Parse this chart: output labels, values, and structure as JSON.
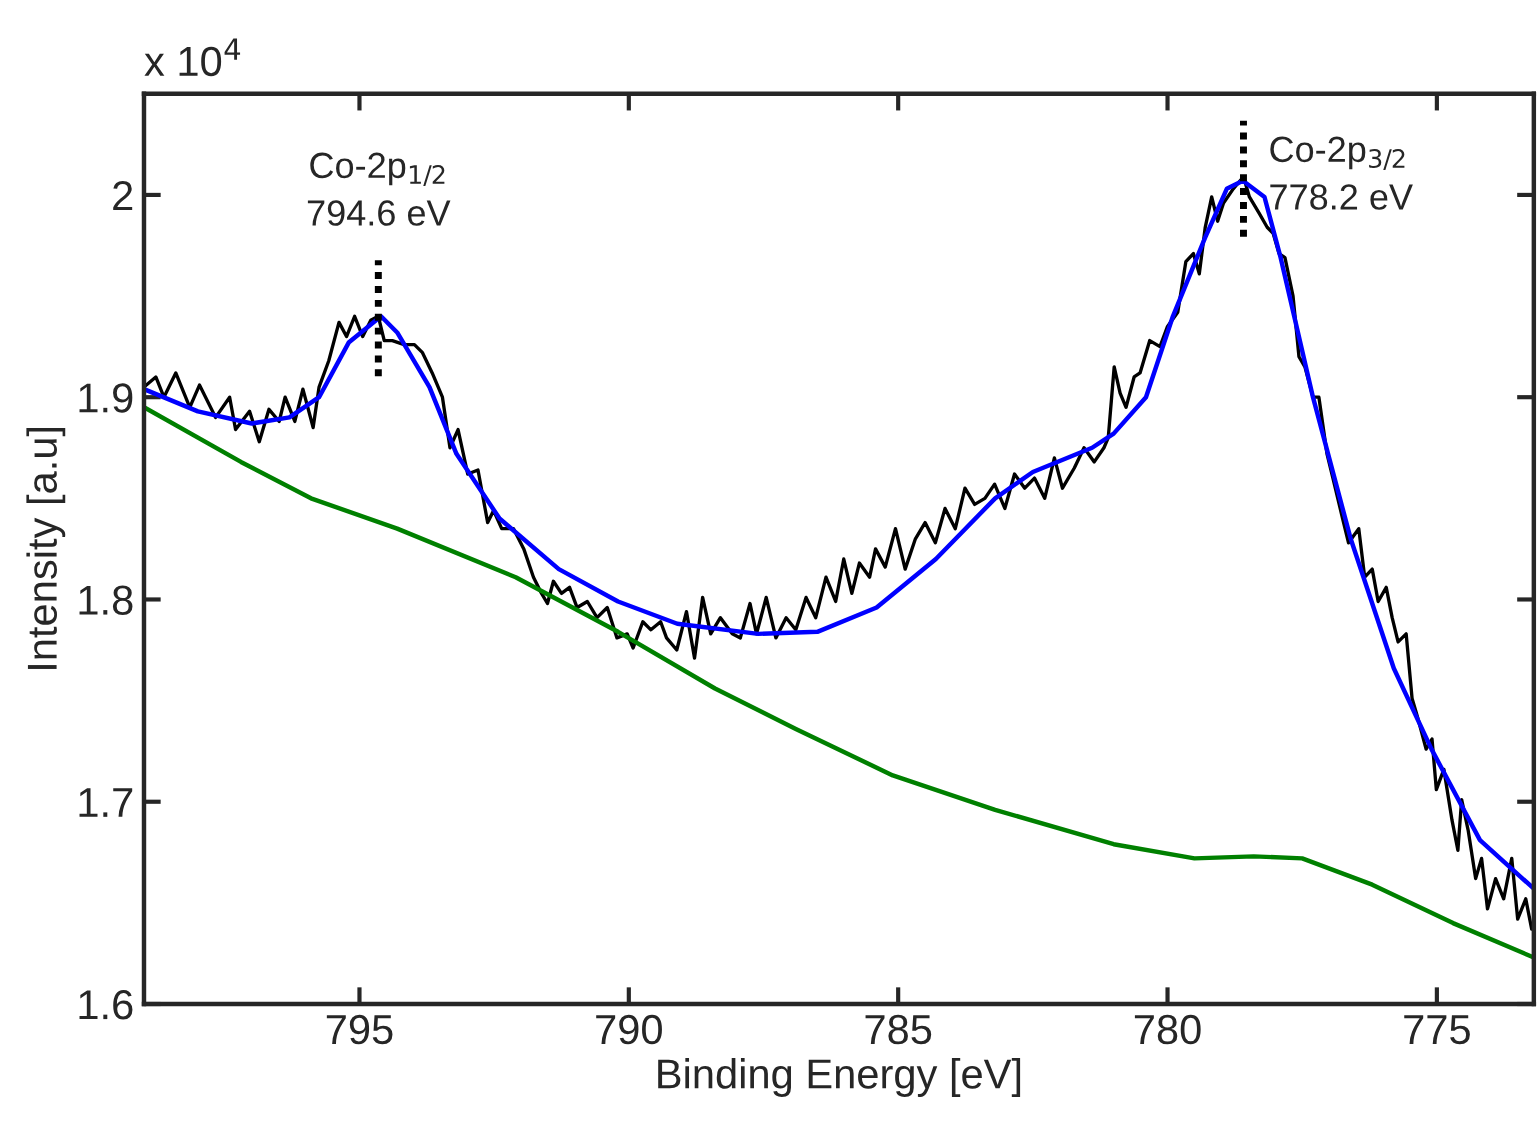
{
  "chart_data": {
    "type": "line",
    "xlabel": "Binding Energy [eV]",
    "ylabel": "Intensity [a.u]",
    "annotations": [
      "x 10$^{4}$",
      {
        "text": "Co-2p$_{1/2}$\n794.6 eV",
        "x": 794.65,
        "y": 1.94
      },
      {
        "text": "Co-2p$_{3/2}$\n778.2 eV",
        "x": 778.59,
        "y": 2.009
      }
    ],
    "xlim": [
      799,
      773.2
    ],
    "xticks": [
      795,
      790,
      785,
      780,
      775
    ],
    "ylim": [
      1.6,
      2.05
    ],
    "yticks": [
      1.6,
      1.7,
      1.8,
      1.9,
      2
    ],
    "grid": false,
    "legend": false,
    "marker": "none",
    "line_style": "solid",
    "series": [
      {
        "color": "#000000",
        "x": [
          799.0,
          798.78,
          798.63,
          798.41,
          798.15,
          797.97,
          797.67,
          797.41,
          797.3,
          797.04,
          796.86,
          796.68,
          796.49,
          796.38,
          796.2,
          796.05,
          795.86,
          795.75,
          795.57,
          795.38,
          795.24,
          795.09,
          794.94,
          794.79,
          794.65,
          794.54,
          794.39,
          794.17,
          793.98,
          793.83,
          793.65,
          793.46,
          793.32,
          793.17,
          792.99,
          792.8,
          792.62,
          792.51,
          792.36,
          792.14,
          791.95,
          791.77,
          791.62,
          791.51,
          791.4,
          791.25,
          791.1,
          790.96,
          790.77,
          790.59,
          790.4,
          790.22,
          790.03,
          789.92,
          789.74,
          789.59,
          789.41,
          789.3,
          789.11,
          788.93,
          788.78,
          788.63,
          788.48,
          788.3,
          788.08,
          787.93,
          787.75,
          787.63,
          787.45,
          787.27,
          787.08,
          786.9,
          786.71,
          786.53,
          786.34,
          786.16,
          786.01,
          785.86,
          785.72,
          785.53,
          785.42,
          785.24,
          785.05,
          784.87,
          784.68,
          784.5,
          784.31,
          784.13,
          783.94,
          783.76,
          783.58,
          783.39,
          783.21,
          783.02,
          782.84,
          782.65,
          782.47,
          782.28,
          782.1,
          781.95,
          781.73,
          781.55,
          781.36,
          781.18,
          781.1,
          780.99,
          780.88,
          780.77,
          780.62,
          780.51,
          780.33,
          780.14,
          780.0,
          779.81,
          779.66,
          779.52,
          779.41,
          779.3,
          779.18,
          779.07,
          778.96,
          778.78,
          778.59,
          778.48,
          778.3,
          778.15,
          778.04,
          777.93,
          777.82,
          777.67,
          777.56,
          777.45,
          777.3,
          777.19,
          777.04,
          776.93,
          776.75,
          776.64,
          776.45,
          776.34,
          776.2,
          776.09,
          775.94,
          775.83,
          775.72,
          775.57,
          775.46,
          775.35,
          775.2,
          775.09,
          775.01,
          774.87,
          774.72,
          774.61,
          774.54,
          774.42,
          774.28,
          774.17,
          774.06,
          773.91,
          773.76,
          773.61,
          773.5,
          773.35,
          773.24
        ],
        "values": [
          1.905,
          1.91,
          1.9,
          1.912,
          1.895,
          1.906,
          1.89,
          1.9,
          1.884,
          1.893,
          1.878,
          1.894,
          1.888,
          1.9,
          1.888,
          1.904,
          1.885,
          1.905,
          1.918,
          1.937,
          1.93,
          1.94,
          1.93,
          1.938,
          1.94,
          1.928,
          1.928,
          1.926,
          1.926,
          1.922,
          1.912,
          1.9,
          1.875,
          1.884,
          1.862,
          1.864,
          1.838,
          1.844,
          1.835,
          1.835,
          1.825,
          1.811,
          1.803,
          1.798,
          1.809,
          1.803,
          1.806,
          1.796,
          1.799,
          1.791,
          1.796,
          1.781,
          1.783,
          1.776,
          1.789,
          1.785,
          1.789,
          1.781,
          1.775,
          1.794,
          1.771,
          1.801,
          1.783,
          1.791,
          1.783,
          1.781,
          1.798,
          1.783,
          1.801,
          1.781,
          1.791,
          1.785,
          1.801,
          1.791,
          1.811,
          1.799,
          1.82,
          1.803,
          1.818,
          1.811,
          1.825,
          1.816,
          1.835,
          1.815,
          1.83,
          1.838,
          1.828,
          1.845,
          1.835,
          1.855,
          1.847,
          1.85,
          1.857,
          1.845,
          1.862,
          1.855,
          1.86,
          1.85,
          1.87,
          1.855,
          1.865,
          1.875,
          1.868,
          1.875,
          1.88,
          1.915,
          1.902,
          1.895,
          1.91,
          1.912,
          1.928,
          1.925,
          1.935,
          1.942,
          1.967,
          1.971,
          1.961,
          1.984,
          1.999,
          1.987,
          1.996,
          2.003,
          2.009,
          1.999,
          1.991,
          1.984,
          1.981,
          1.971,
          1.969,
          1.95,
          1.92,
          1.915,
          1.9,
          1.9,
          1.872,
          1.86,
          1.84,
          1.828,
          1.835,
          1.811,
          1.815,
          1.799,
          1.806,
          1.791,
          1.779,
          1.783,
          1.751,
          1.741,
          1.726,
          1.731,
          1.706,
          1.716,
          1.691,
          1.676,
          1.701,
          1.686,
          1.662,
          1.672,
          1.647,
          1.662,
          1.652,
          1.672,
          1.642,
          1.652,
          1.637
        ]
      },
      {
        "color": "#0000ff",
        "x": [
          799.0,
          798.0,
          797.0,
          796.3,
          795.75,
          795.2,
          794.6,
          794.3,
          793.7,
          793.2,
          792.4,
          791.3,
          790.2,
          789.1,
          787.6,
          786.5,
          785.4,
          784.3,
          783.2,
          782.5,
          781.4,
          781.0,
          780.4,
          779.9,
          779.3,
          778.9,
          778.6,
          778.2,
          777.9,
          777.3,
          776.6,
          775.8,
          775.1,
          774.2,
          773.2
        ],
        "values": [
          1.904,
          1.893,
          1.887,
          1.89,
          1.9,
          1.927,
          1.94,
          1.932,
          1.905,
          1.872,
          1.84,
          1.815,
          1.799,
          1.788,
          1.783,
          1.784,
          1.796,
          1.82,
          1.85,
          1.863,
          1.875,
          1.882,
          1.9,
          1.94,
          1.979,
          2.003,
          2.007,
          1.999,
          1.969,
          1.9,
          1.83,
          1.766,
          1.726,
          1.681,
          1.657
        ]
      },
      {
        "color": "#008000",
        "x": [
          799.0,
          797.2,
          795.9,
          794.3,
          792.1,
          790.2,
          788.4,
          786.9,
          785.1,
          783.2,
          781.0,
          779.5,
          778.4,
          777.5,
          776.2,
          774.7,
          773.2
        ],
        "values": [
          1.895,
          1.868,
          1.85,
          1.835,
          1.811,
          1.784,
          1.756,
          1.736,
          1.713,
          1.696,
          1.679,
          1.672,
          1.673,
          1.672,
          1.659,
          1.64,
          1.623
        ]
      }
    ]
  }
}
